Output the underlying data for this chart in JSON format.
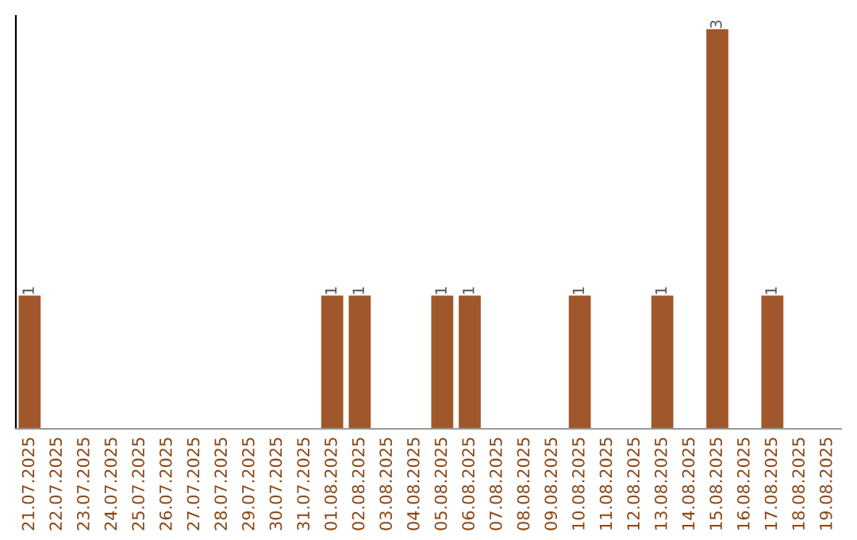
{
  "chart_data": {
    "type": "bar",
    "categories": [
      "21.07.2025",
      "22.07.2025",
      "23.07.2025",
      "24.07.2025",
      "25.07.2025",
      "26.07.2025",
      "27.07.2025",
      "28.07.2025",
      "29.07.2025",
      "30.07.2025",
      "31.07.2025",
      "01.08.2025",
      "02.08.2025",
      "03.08.2025",
      "04.08.2025",
      "05.08.2025",
      "06.08.2025",
      "07.08.2025",
      "08.08.2025",
      "09.08.2025",
      "10.08.2025",
      "11.08.2025",
      "12.08.2025",
      "13.08.2025",
      "14.08.2025",
      "15.08.2025",
      "16.08.2025",
      "17.08.2025",
      "18.08.2025",
      "19.08.2025"
    ],
    "values": [
      1,
      0,
      0,
      0,
      0,
      0,
      0,
      0,
      0,
      0,
      0,
      1,
      1,
      0,
      0,
      1,
      1,
      0,
      0,
      0,
      1,
      0,
      0,
      1,
      0,
      3,
      0,
      1,
      0,
      0
    ],
    "color": "#a0572b",
    "ylim": [
      0,
      3.1
    ],
    "value_labels": [
      "1",
      null,
      null,
      null,
      null,
      null,
      null,
      null,
      null,
      null,
      null,
      "1",
      "1",
      null,
      null,
      "1",
      "1",
      null,
      null,
      null,
      "1",
      null,
      null,
      "1",
      null,
      "3",
      null,
      "1",
      null,
      null
    ],
    "grid": false,
    "legend": false
  }
}
